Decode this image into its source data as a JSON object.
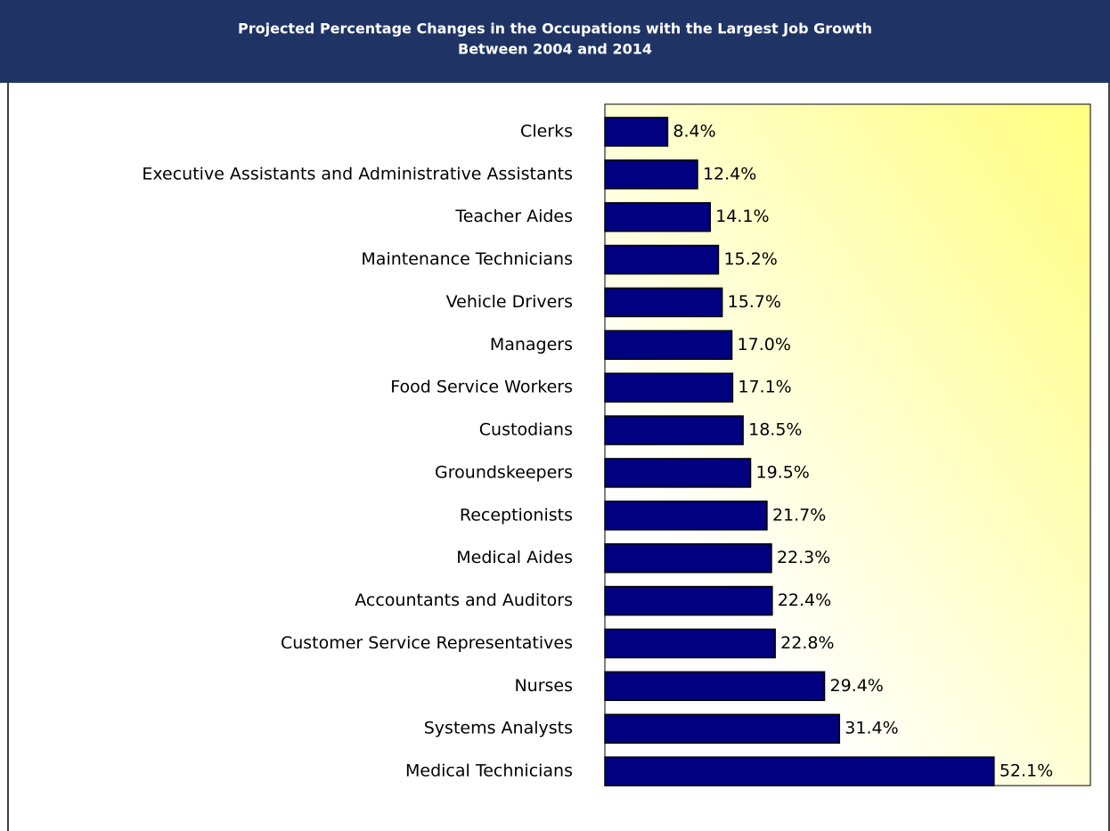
{
  "chart_data": {
    "type": "bar",
    "orientation": "horizontal",
    "title": [
      "Projected Percentage Changes in the Occupations with the Largest Job Growth",
      "Between 2004 and 2014"
    ],
    "categories": [
      "Clerks",
      "Executive Assistants and Administrative Assistants",
      "Teacher Aides",
      "Maintenance Technicians",
      "Vehicle Drivers",
      "Managers",
      "Food Service Workers",
      "Custodians",
      "Groundskeepers",
      "Receptionists",
      "Medical Aides",
      "Accountants and Auditors",
      "Customer Service Representatives",
      "Nurses",
      "Systems Analysts",
      "Medical Technicians"
    ],
    "values": [
      8.4,
      12.4,
      14.1,
      15.2,
      15.7,
      17.0,
      17.1,
      18.5,
      19.5,
      21.7,
      22.3,
      22.4,
      22.8,
      29.4,
      31.4,
      52.1
    ],
    "value_labels": [
      "8.4%",
      "12.4%",
      "14.1%",
      "15.2%",
      "15.7%",
      "17.0%",
      "17.1%",
      "18.5%",
      "19.5%",
      "21.7%",
      "22.3%",
      "22.4%",
      "22.8%",
      "29.4%",
      "31.4%",
      "52.1%"
    ],
    "color": "#000080",
    "xlim": [
      0,
      65
    ]
  }
}
